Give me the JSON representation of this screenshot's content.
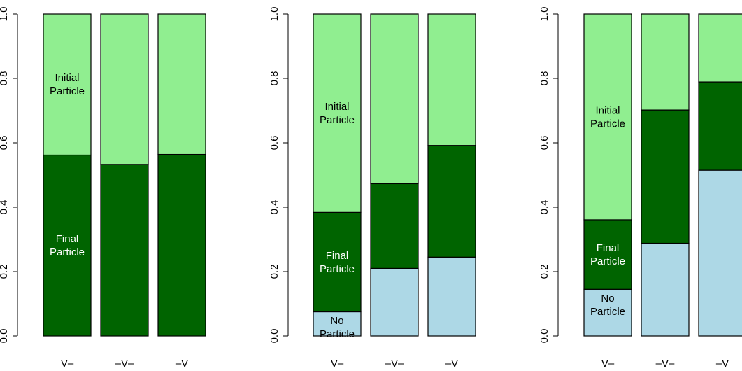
{
  "colors": {
    "initial": "#90ee90",
    "final": "#006400",
    "none": "#add8e6",
    "stroke": "#000000",
    "label_on_dark": "#ffffff",
    "label_on_light": "#000000"
  },
  "labels": {
    "initial": "Initial Particle",
    "final": "Final Particle",
    "none": "No Particle"
  },
  "chart_data": [
    {
      "type": "bar",
      "stacked": true,
      "categories": [
        "V–",
        "–V–",
        "–V"
      ],
      "ylim": [
        0,
        1
      ],
      "yticks": [
        "0.0",
        "0.2",
        "0.4",
        "0.6",
        "0.8",
        "1.0"
      ],
      "series": [
        {
          "name": "Final Particle",
          "values": [
            0.562,
            0.533,
            0.564
          ]
        },
        {
          "name": "Initial Particle",
          "values": [
            0.438,
            0.467,
            0.436
          ]
        }
      ],
      "annotations": [
        {
          "series": "Initial Particle",
          "lines": [
            "Initial",
            "Particle"
          ],
          "category": 0
        },
        {
          "series": "Final Particle",
          "lines": [
            "Final",
            "Particle"
          ],
          "category": 0
        }
      ]
    },
    {
      "type": "bar",
      "stacked": true,
      "categories": [
        "V–",
        "–V–",
        "–V"
      ],
      "ylim": [
        0,
        1
      ],
      "yticks": [
        "0.0",
        "0.2",
        "0.4",
        "0.6",
        "0.8",
        "1.0"
      ],
      "series": [
        {
          "name": "No Particle",
          "values": [
            0.075,
            0.21,
            0.245
          ]
        },
        {
          "name": "Final Particle",
          "values": [
            0.309,
            0.263,
            0.347
          ]
        },
        {
          "name": "Initial Particle",
          "values": [
            0.616,
            0.527,
            0.408
          ]
        }
      ],
      "annotations": [
        {
          "series": "Initial Particle",
          "lines": [
            "Initial",
            "Particle"
          ],
          "category": 0
        },
        {
          "series": "Final Particle",
          "lines": [
            "Final",
            "Particle"
          ],
          "category": 0
        },
        {
          "series": "No Particle",
          "lines": [
            "No",
            "Particle"
          ],
          "category": 0
        }
      ]
    },
    {
      "type": "bar",
      "stacked": true,
      "categories": [
        "V–",
        "–V–",
        "–V"
      ],
      "ylim": [
        0,
        1
      ],
      "yticks": [
        "0.0",
        "0.2",
        "0.4",
        "0.6",
        "0.8",
        "1.0"
      ],
      "series": [
        {
          "name": "No Particle",
          "values": [
            0.145,
            0.288,
            0.515
          ]
        },
        {
          "name": "Final Particle",
          "values": [
            0.216,
            0.414,
            0.274
          ]
        },
        {
          "name": "Initial Particle",
          "values": [
            0.639,
            0.298,
            0.211
          ]
        }
      ],
      "annotations": [
        {
          "series": "Initial Particle",
          "lines": [
            "Initial",
            "Particle"
          ],
          "category": 0
        },
        {
          "series": "Final Particle",
          "lines": [
            "Final",
            "Particle"
          ],
          "category": 0
        },
        {
          "series": "No Particle",
          "lines": [
            "No",
            "Particle"
          ],
          "category": 0
        }
      ]
    }
  ]
}
